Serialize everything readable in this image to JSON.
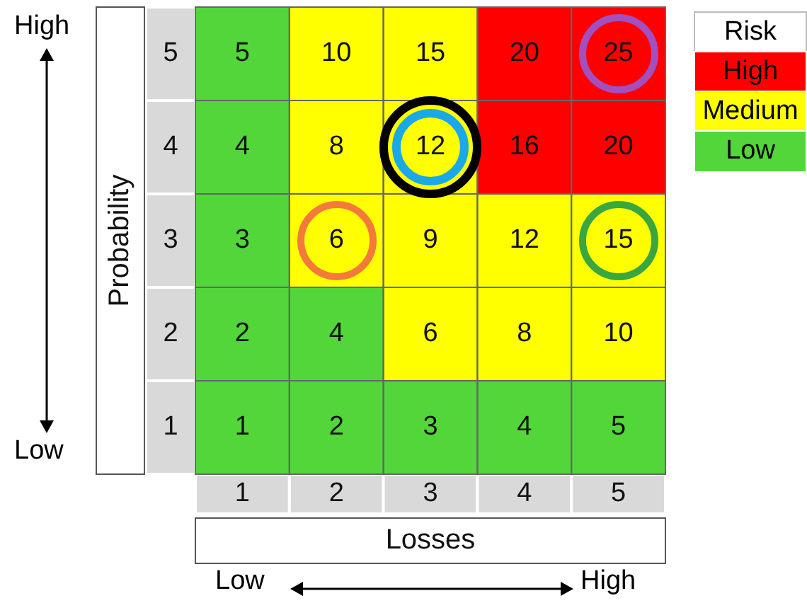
{
  "chart_data": {
    "type": "heatmap",
    "xlabel": "Losses",
    "ylabel": "Probability",
    "legend_title": "Risk",
    "data_labels": true,
    "categories": [
      "1",
      "2",
      "3",
      "4",
      "5"
    ],
    "y_categories": [
      "5",
      "4",
      "3",
      "2",
      "1"
    ],
    "cells": [
      [
        5,
        10,
        15,
        20,
        25
      ],
      [
        4,
        8,
        12,
        16,
        20
      ],
      [
        3,
        6,
        9,
        12,
        15
      ],
      [
        2,
        4,
        6,
        8,
        10
      ],
      [
        1,
        2,
        3,
        4,
        5
      ]
    ],
    "colors": [
      [
        "#52d63a",
        "#ffff00",
        "#ffff00",
        "#ff0000",
        "#ff0000"
      ],
      [
        "#52d63a",
        "#ffff00",
        "#ffff00",
        "#ff0000",
        "#ff0000"
      ],
      [
        "#52d63a",
        "#ffff00",
        "#ffff00",
        "#ffff00",
        "#ffff00"
      ],
      [
        "#52d63a",
        "#52d63a",
        "#ffff00",
        "#ffff00",
        "#ffff00"
      ],
      [
        "#52d63a",
        "#52d63a",
        "#52d63a",
        "#52d63a",
        "#52d63a"
      ]
    ],
    "annotations": [
      "High",
      "Low",
      "Low",
      "High",
      "High",
      "Medium",
      "Low"
    ]
  }
}
